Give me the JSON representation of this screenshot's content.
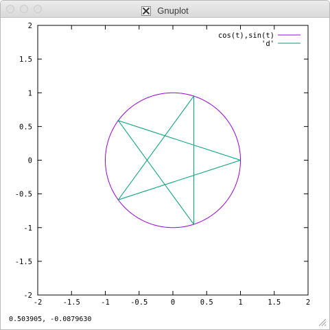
{
  "window": {
    "title": "Gnuplot"
  },
  "status_readout": "0.503905, -0.0879630",
  "colors": {
    "series1": "#9400d3",
    "series2": "#009e73"
  },
  "icons": [
    "x11-logo-icon",
    "resize-grip-icon"
  ],
  "chart_data": {
    "type": "line",
    "title": "",
    "xlabel": "",
    "ylabel": "",
    "xlim": [
      -2,
      2
    ],
    "ylim": [
      -2,
      2
    ],
    "xticks": [
      -2,
      -1.5,
      -1,
      -0.5,
      0,
      0.5,
      1,
      1.5,
      2
    ],
    "yticks": [
      -2,
      -1.5,
      -1,
      -0.5,
      0,
      0.5,
      1,
      1.5,
      2
    ],
    "xtick_labels": [
      "-2",
      "-1.5",
      "-1",
      "-0.5",
      "0",
      "0.5",
      "1",
      "1.5",
      "2"
    ],
    "ytick_labels": [
      "-2",
      "-1.5",
      "-1",
      "-0.5",
      "0",
      "0.5",
      "1",
      "1.5",
      "2"
    ],
    "grid": false,
    "legend_position": "top-right",
    "series": [
      {
        "name": "cos(t),sin(t)",
        "kind": "parametric",
        "function": "x=cos(t), y=sin(t)",
        "color": "#9400d3"
      },
      {
        "name": "'d'",
        "color": "#009e73",
        "x": [
          1,
          -0.809,
          0.309,
          0.309,
          -0.809,
          1
        ],
        "y": [
          0,
          0.588,
          -0.951,
          0.951,
          -0.588,
          0
        ]
      }
    ]
  }
}
